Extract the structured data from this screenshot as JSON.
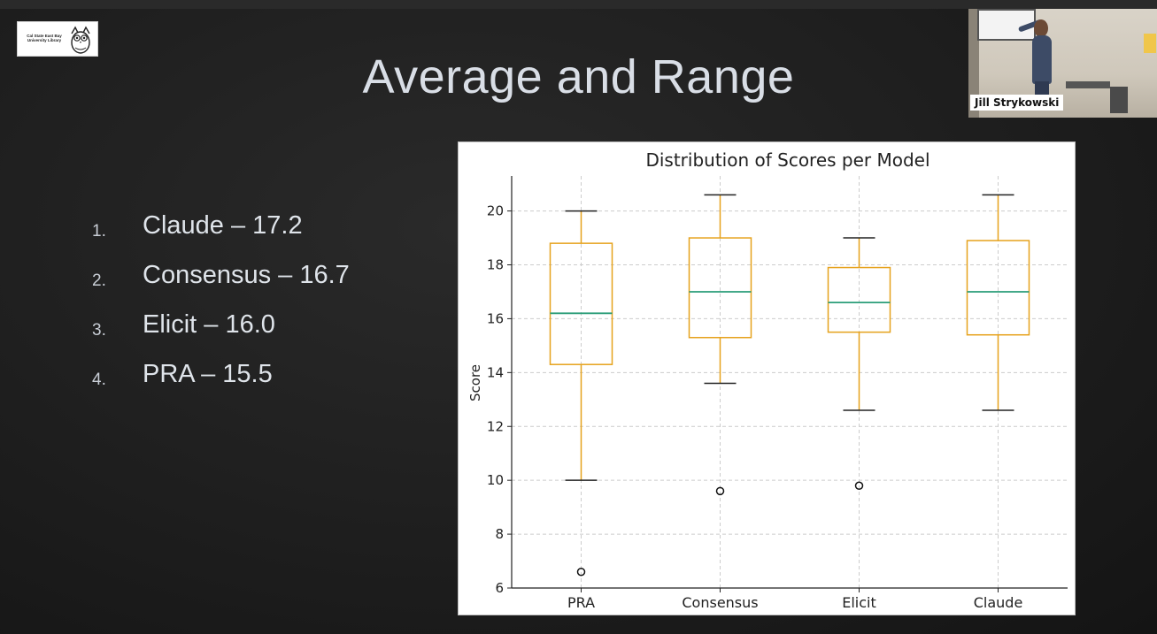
{
  "slide": {
    "title": "Average and Range",
    "logo": {
      "text": "Cal State East Bay University Library",
      "icon": "owl-mascot-icon"
    },
    "ranking": [
      {
        "num": "1.",
        "text": "Claude – 17.2"
      },
      {
        "num": "2.",
        "text": "Consensus – 16.7"
      },
      {
        "num": "3.",
        "text": "Elicit – 16.0"
      },
      {
        "num": "4.",
        "text": "PRA – 15.5"
      }
    ]
  },
  "chart_data": {
    "type": "box",
    "title": "Distribution of Scores per Model",
    "xlabel": "",
    "ylabel": "Score",
    "ylim": [
      6,
      21.3
    ],
    "yticks": [
      6,
      8,
      10,
      12,
      14,
      16,
      18,
      20
    ],
    "grid": true,
    "categories": [
      "PRA",
      "Consensus",
      "Elicit",
      "Claude"
    ],
    "boxes": [
      {
        "name": "PRA",
        "whisker_low": 10,
        "q1": 14.3,
        "median": 16.2,
        "q3": 18.8,
        "whisker_high": 20,
        "outliers": [
          6.6
        ]
      },
      {
        "name": "Consensus",
        "whisker_low": 13.6,
        "q1": 15.3,
        "median": 17,
        "q3": 19,
        "whisker_high": 20.6,
        "outliers": [
          9.6
        ]
      },
      {
        "name": "Elicit",
        "whisker_low": 12.6,
        "q1": 15.5,
        "median": 16.6,
        "q3": 17.9,
        "whisker_high": 19,
        "outliers": [
          9.8
        ]
      },
      {
        "name": "Claude",
        "whisker_low": 12.6,
        "q1": 15.4,
        "median": 17,
        "q3": 18.9,
        "whisker_high": 20.6,
        "outliers": []
      }
    ],
    "colors": {
      "box": "#e6a21c",
      "median": "#2a9d78",
      "whisker": "#222222",
      "grid": "#cccccc"
    }
  },
  "webcam": {
    "name": "Jill Strykowski"
  }
}
